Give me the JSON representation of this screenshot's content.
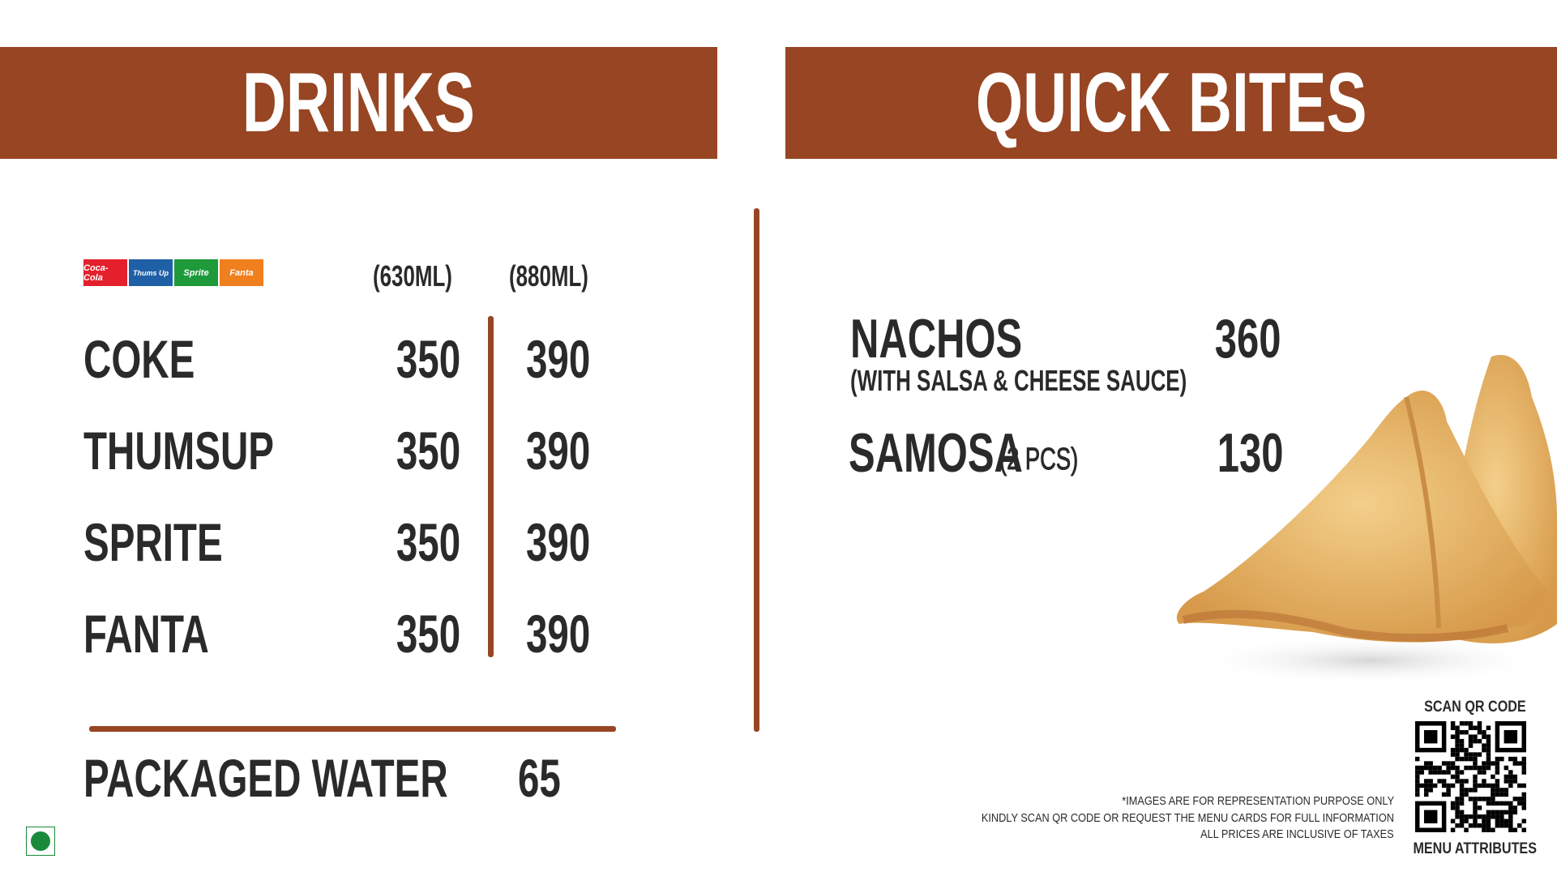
{
  "drinks": {
    "title": "DRINKS",
    "brand_logos": [
      "Coca-Cola",
      "Thums Up",
      "Sprite",
      "Fanta"
    ],
    "brand_colors": [
      "#e3202b",
      "#1f5fa6",
      "#1f9a3b",
      "#f07f1d"
    ],
    "size_headers": [
      "(630ML)",
      "(880ML)"
    ],
    "items": [
      {
        "name": "COKE",
        "price_630": "350",
        "price_880": "390"
      },
      {
        "name": "THUMSUP",
        "price_630": "350",
        "price_880": "390"
      },
      {
        "name": "SPRITE",
        "price_630": "350",
        "price_880": "390"
      },
      {
        "name": "FANTA",
        "price_630": "350",
        "price_880": "390"
      }
    ],
    "water": {
      "name": "PACKAGED WATER",
      "price": "65"
    }
  },
  "quick_bites": {
    "title": "QUICK BITES",
    "items": [
      {
        "name": "NACHOS",
        "note": "(WITH SALSA & CHEESE SAUCE)",
        "price": "360"
      },
      {
        "name": "SAMOSA",
        "note": "(2 PCS)",
        "price": "130"
      }
    ]
  },
  "footer": {
    "disclaimers": [
      "*IMAGES ARE FOR REPRESENTATION PURPOSE ONLY",
      "KINDLY SCAN QR CODE OR REQUEST THE MENU CARDS FOR FULL INFORMATION",
      "ALL PRICES ARE INCLUSIVE OF TAXES"
    ],
    "qr_top": "SCAN QR CODE",
    "qr_bottom": "MENU ATTRIBUTES"
  },
  "colors": {
    "accent": "#974522",
    "text": "#2a2a2a",
    "veg": "#1a8a3a"
  }
}
